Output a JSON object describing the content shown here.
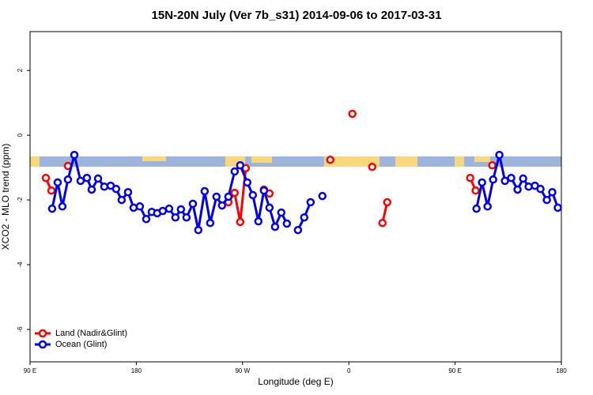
{
  "chart_data": {
    "type": "line",
    "title": "15N-20N July (Ver 7b_s31)   2014-09-06 to 2017-03-31",
    "xlabel": "Longitude (deg E)",
    "ylabel": "XCO2 - MLO trend (ppm)",
    "xlim": [
      90,
      540
    ],
    "ylim": [
      -7,
      3.2
    ],
    "xticks": [
      {
        "value": 90,
        "label": "90 E"
      },
      {
        "value": 180,
        "label": "180"
      },
      {
        "value": 270,
        "label": "90 W"
      },
      {
        "value": 360,
        "label": "0"
      },
      {
        "value": 450,
        "label": "90 E"
      },
      {
        "value": 540,
        "label": "180"
      }
    ],
    "yticks": [
      -6,
      -4,
      -2,
      0,
      2
    ],
    "legend": "bottom-left",
    "series": [
      {
        "name": "Land (Nadir&Glint)",
        "color": "#ff0000",
        "x": [
          103.4,
          108.1,
          115,
          122.1,
          190,
          258,
          263.3,
          268,
          272.7,
          280,
          288.1,
          292.8,
          320,
          344.3,
          355,
          363,
          370,
          379.8,
          385,
          388.5,
          392.5,
          430,
          462.8,
          467.4,
          475,
          481.5
        ],
        "values": [
          -1.32,
          -1.71,
          null,
          -0.95,
          null,
          -2.07,
          -1.78,
          -2.68,
          -1.02,
          null,
          -1.68,
          -1.8,
          null,
          -0.76,
          null,
          0.66,
          null,
          -0.98,
          null,
          -2.71,
          -2.07,
          null,
          -1.32,
          -1.71,
          null,
          -0.93
        ]
      },
      {
        "name": "Ocean (Glint)",
        "color": "#0000ee",
        "x": [
          108.7,
          113.4,
          117.4,
          122.1,
          127.5,
          132.8,
          138.2,
          142.2,
          147.6,
          152.9,
          158.3,
          162.9,
          167.6,
          173,
          177.7,
          183,
          188.4,
          193.1,
          197.7,
          202.4,
          207.8,
          213.1,
          217.8,
          222.5,
          227.9,
          232.5,
          237.9,
          242.6,
          247.9,
          252.6,
          258,
          263.3,
          268,
          274,
          278.7,
          283.4,
          288.1,
          292.8,
          297.5,
          302.8,
          307.5,
          312,
          316.9,
          322.2,
          327.6,
          332,
          337.6,
          400,
          468.1,
          472.8,
          477.5,
          482.2,
          487.5,
          492.2,
          497.5,
          502.9,
          507.6,
          512.3,
          517.6,
          522.3,
          527.7,
          532.3,
          537
        ],
        "values": [
          -2.27,
          -1.46,
          -2.2,
          -1.37,
          -0.61,
          -1.41,
          -1.32,
          -1.68,
          -1.34,
          -1.59,
          -1.56,
          -1.66,
          -2.0,
          -1.76,
          -2.24,
          -2.2,
          -2.59,
          -2.37,
          -2.41,
          -2.34,
          -2.27,
          -2.54,
          -2.29,
          -2.54,
          -2.12,
          -2.93,
          -1.73,
          -2.71,
          -1.9,
          -2.17,
          -1.9,
          -1.12,
          -0.93,
          -1.46,
          -1.85,
          -2.66,
          -1.71,
          -2.24,
          -2.83,
          -2.39,
          -2.73,
          null,
          -2.93,
          -2.54,
          -2.07,
          null,
          -1.88,
          null,
          -2.27,
          -1.46,
          -2.2,
          -1.37,
          -0.61,
          -1.41,
          -1.32,
          -1.68,
          -1.34,
          -1.59,
          -1.56,
          -1.66,
          -2.0,
          -1.76,
          -2.24
        ]
      }
    ]
  }
}
